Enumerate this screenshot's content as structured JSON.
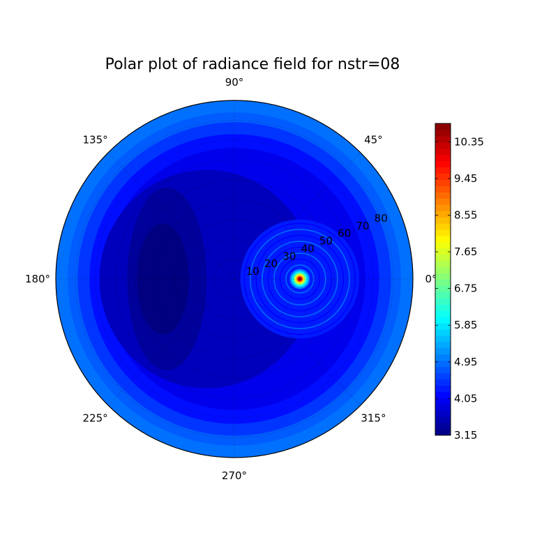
{
  "chart_data": {
    "type": "heatmap",
    "projection": "polar",
    "title": "Polar plot of radiance field for nstr=08",
    "angular_ticks": [
      "0°",
      "45°",
      "90°",
      "135°",
      "180°",
      "225°",
      "270°",
      "315°"
    ],
    "radial_ticks": [
      "10",
      "20",
      "30",
      "40",
      "50",
      "60",
      "70",
      "80"
    ],
    "radial_range": [
      0,
      90
    ],
    "colormap": "jet",
    "color_range": [
      3.15,
      10.8
    ],
    "colorbar_ticks": [
      "3.15",
      "4.05",
      "4.95",
      "5.85",
      "6.75",
      "7.65",
      "8.55",
      "9.45",
      "10.35"
    ],
    "grid": true,
    "features": {
      "background_level": 4.95,
      "edge_ring_level": 4.95,
      "central_trough_level": 3.6,
      "inner_trough_level": 3.15,
      "hotspot": {
        "theta_deg": 0,
        "r": 33,
        "peak": 10.8
      }
    }
  }
}
